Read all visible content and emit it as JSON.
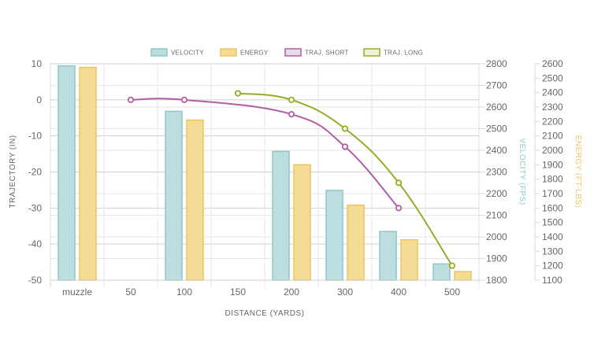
{
  "chart_data": {
    "type": "bar",
    "categories": [
      "muzzle",
      "50",
      "100",
      "150",
      "200",
      "300",
      "400",
      "500"
    ],
    "xlabel": "DISTANCE (YARDS)",
    "legend_position": "top-center",
    "grid": true,
    "axes": {
      "trajectory": {
        "label": "TRAJECTORY (IN)",
        "range": [
          -50,
          10
        ],
        "ticks": [
          10,
          0,
          -10,
          -20,
          -30,
          -40,
          -50
        ],
        "position": "left"
      },
      "velocity": {
        "label": "VELOCITY (FPS)",
        "range": [
          1800,
          2800
        ],
        "ticks": [
          2800,
          2700,
          2600,
          2500,
          2400,
          2300,
          2200,
          2100,
          2000,
          1900,
          1800
        ],
        "position": "right",
        "color": "#8ec6c7"
      },
      "energy": {
        "label": "ENERGY (FT-LBS)",
        "range": [
          1100,
          2600
        ],
        "ticks": [
          2600,
          2500,
          2400,
          2300,
          2200,
          2100,
          2000,
          1900,
          1800,
          1700,
          1600,
          1500,
          1400,
          1300,
          1200,
          1100
        ],
        "position": "right",
        "color": "#ebc65f"
      }
    },
    "series": [
      {
        "name": "VELOCITY",
        "type": "bar",
        "axis": "velocity",
        "color": "#8ec6c7",
        "fill": "#bcdedf",
        "values": [
          2790,
          null,
          2580,
          null,
          2395,
          2215,
          2025,
          1875
        ]
      },
      {
        "name": "ENERGY",
        "type": "bar",
        "axis": "energy",
        "color": "#ebc65f",
        "fill": "#f4dc97",
        "values": [
          2575,
          null,
          2210,
          null,
          1900,
          1620,
          1380,
          1160
        ]
      },
      {
        "name": "TRAJ. SHORT",
        "type": "line",
        "axis": "trajectory",
        "color": "#b05fa2",
        "fill": "#e8dde7",
        "values": [
          null,
          0,
          0,
          null,
          -4,
          -13,
          -30,
          null
        ]
      },
      {
        "name": "TRAJ. LONG",
        "type": "line",
        "axis": "trajectory",
        "color": "#9aaa23",
        "fill": "#eef0d9",
        "values": [
          null,
          null,
          null,
          1.8,
          0,
          -8,
          -23,
          -46
        ]
      }
    ]
  }
}
